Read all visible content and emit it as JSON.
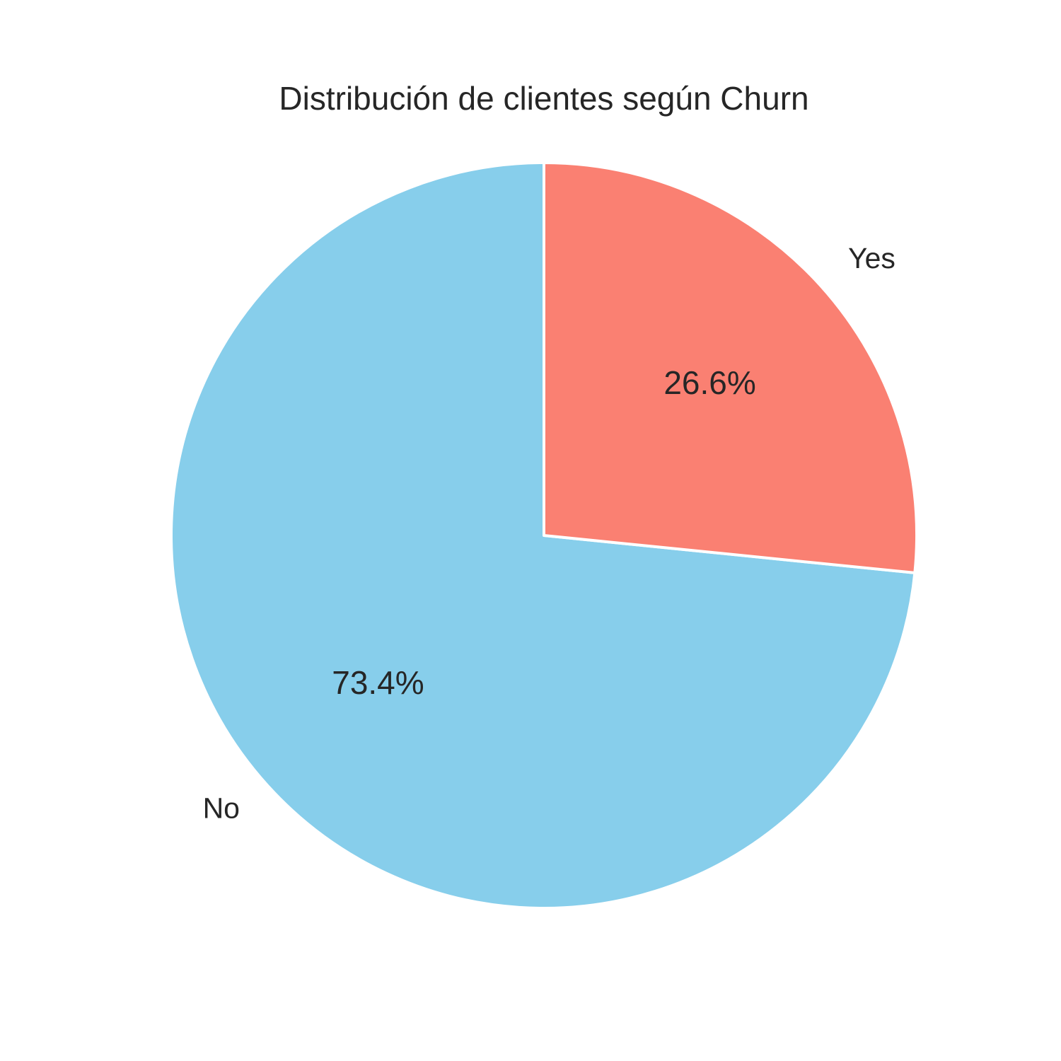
{
  "chart_data": {
    "type": "pie",
    "title": "Distribución de clientes según Churn",
    "categories": [
      "No",
      "Yes"
    ],
    "values": [
      73.4,
      26.6
    ],
    "value_labels": [
      "73.4%",
      "26.6%"
    ],
    "colors": [
      "#87CEEB",
      "#FA8072"
    ],
    "start_angle": "top, counter-clockwise",
    "legend": "none"
  }
}
